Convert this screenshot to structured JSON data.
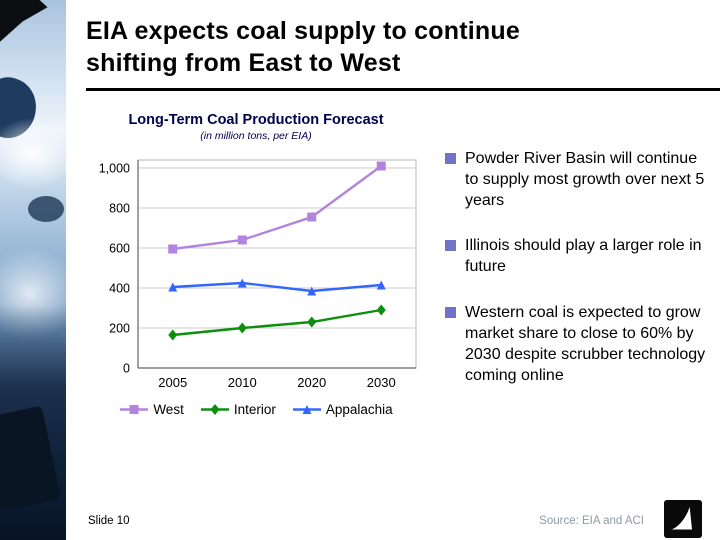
{
  "slide": {
    "title": "EIA expects coal supply to continue shifting from East to West",
    "slide_number_label": "Slide 10",
    "source_label": "Source: EIA and ACI"
  },
  "bullets": [
    "Powder River Basin will continue to supply most growth over next 5 years",
    "Illinois should play a larger role in future",
    "Western coal is expected to grow market share to close to 60% by 2030 despite scrubber technology coming online"
  ],
  "chart_data": {
    "type": "line",
    "title": "Long-Term Coal Production Forecast",
    "subtitle": "(in million tons, per EIA)",
    "categories": [
      "2005",
      "2010",
      "2020",
      "2030"
    ],
    "series": [
      {
        "name": "West",
        "marker": "square",
        "color": "#b284dd",
        "values": [
          595,
          640,
          755,
          1010
        ]
      },
      {
        "name": "Interior",
        "marker": "diamond",
        "color": "#0d8f0d",
        "values": [
          165,
          200,
          230,
          290
        ]
      },
      {
        "name": "Appalachia",
        "marker": "triangle",
        "color": "#3366ff",
        "values": [
          405,
          425,
          385,
          415
        ]
      }
    ],
    "ylim": [
      0,
      1000
    ],
    "ytick_interval": 200,
    "ytick_labels": [
      "0",
      "200",
      "400",
      "600",
      "800",
      "1,000"
    ],
    "grid": "horizontal",
    "legend_position": "bottom"
  },
  "colors": {
    "bullet_square": "#7272c8",
    "grid_line": "#cdcdcd",
    "axis": "#666666"
  }
}
